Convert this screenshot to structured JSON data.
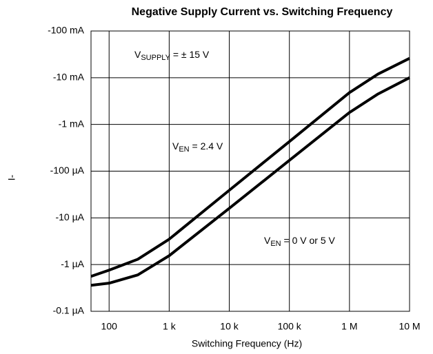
{
  "chart_data": {
    "type": "line",
    "title": "Negative Supply Current vs. Switching Frequency",
    "x_label": "Switching Frequency (Hz)",
    "y_label": "I-",
    "x": [
      50,
      100,
      300,
      1000,
      10000,
      100000,
      1000000,
      3000000,
      10000000
    ],
    "series": [
      {
        "name": "VEN = 2.4 V",
        "color": "#000000",
        "values": [
          -5.6e-07,
          -7.6e-07,
          -1.3e-06,
          -3.5e-06,
          -3.9e-05,
          -0.00043,
          -0.0048,
          -0.012,
          -0.026
        ]
      },
      {
        "name": "VEN = 0 V or 5 V",
        "color": "#000000",
        "values": [
          -3.6e-07,
          -4e-07,
          -6e-07,
          -1.55e-06,
          -1.6e-05,
          -0.00017,
          -0.0018,
          -0.0045,
          -0.01
        ]
      }
    ],
    "annotations": [
      {
        "base": "V",
        "sub": "SUPPLY",
        "suffix": " = ± 15 V"
      },
      {
        "base": "V",
        "sub": "EN",
        "suffix": " = 2.4 V"
      },
      {
        "base": "V",
        "sub": "EN",
        "suffix": " = 0 V or 5 V"
      }
    ],
    "xlog": true,
    "ylog": true,
    "xlim": [
      50,
      10000000
    ],
    "ylim": [
      -1e-07,
      -0.1
    ],
    "xticks": [
      100,
      {
        "value": 1000,
        "label": "1 k"
      },
      {
        "value": 10000,
        "label": "10 k"
      },
      {
        "value": 100000,
        "label": "100 k"
      },
      {
        "value": 1000000,
        "label": "1 M"
      },
      {
        "value": 10000000,
        "label": "10 M"
      }
    ],
    "yticks": [
      {
        "value": -0.1,
        "label": "-100  mA"
      },
      {
        "value": -0.01,
        "label": "-10  mA"
      },
      {
        "value": -0.001,
        "label": "-1  mA"
      },
      {
        "value": -0.0001,
        "label": "-100  µA"
      },
      {
        "value": -1e-05,
        "label": "-10  µA"
      },
      {
        "value": -1e-06,
        "label": "-1  µA"
      },
      {
        "value": -1e-07,
        "label": "-0.1  µA"
      }
    ],
    "grid": true
  }
}
